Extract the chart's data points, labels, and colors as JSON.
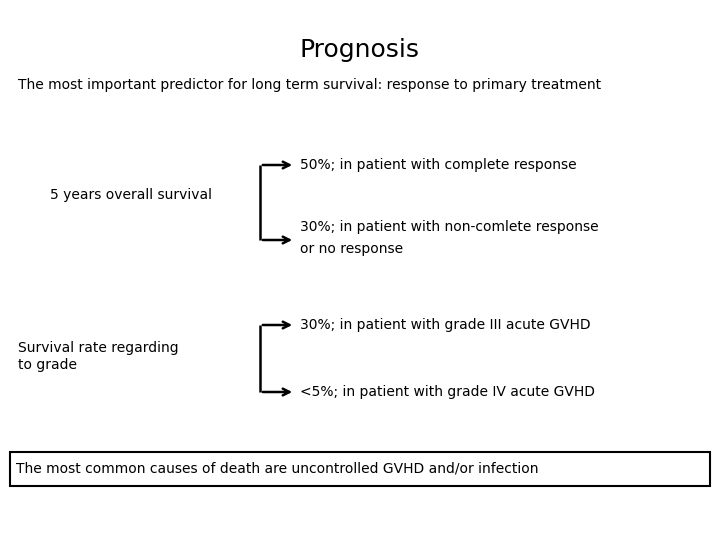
{
  "title": "Prognosis",
  "subtitle": "The most important predictor for long term survival: response to primary treatment",
  "label1": "5 years overall survival",
  "branch1_top": "50%; in patient with complete response",
  "branch1_bot_line1": "30%; in patient with non-comlete response",
  "branch1_bot_line2": "or no response",
  "label2_line1": "Survival rate regarding",
  "label2_line2": "to grade",
  "branch2_top": "30%; in patient with grade III acute GVHD",
  "branch2_bot": "<5%; in patient with grade IV acute GVHD",
  "footer": "The most common causes of death are uncontrolled GVHD and/or infection",
  "bg_color": "#ffffff",
  "text_color": "#000000",
  "title_fontsize": 18,
  "subtitle_fontsize": 10,
  "body_fontsize": 10,
  "footer_fontsize": 10,
  "lw": 1.8
}
